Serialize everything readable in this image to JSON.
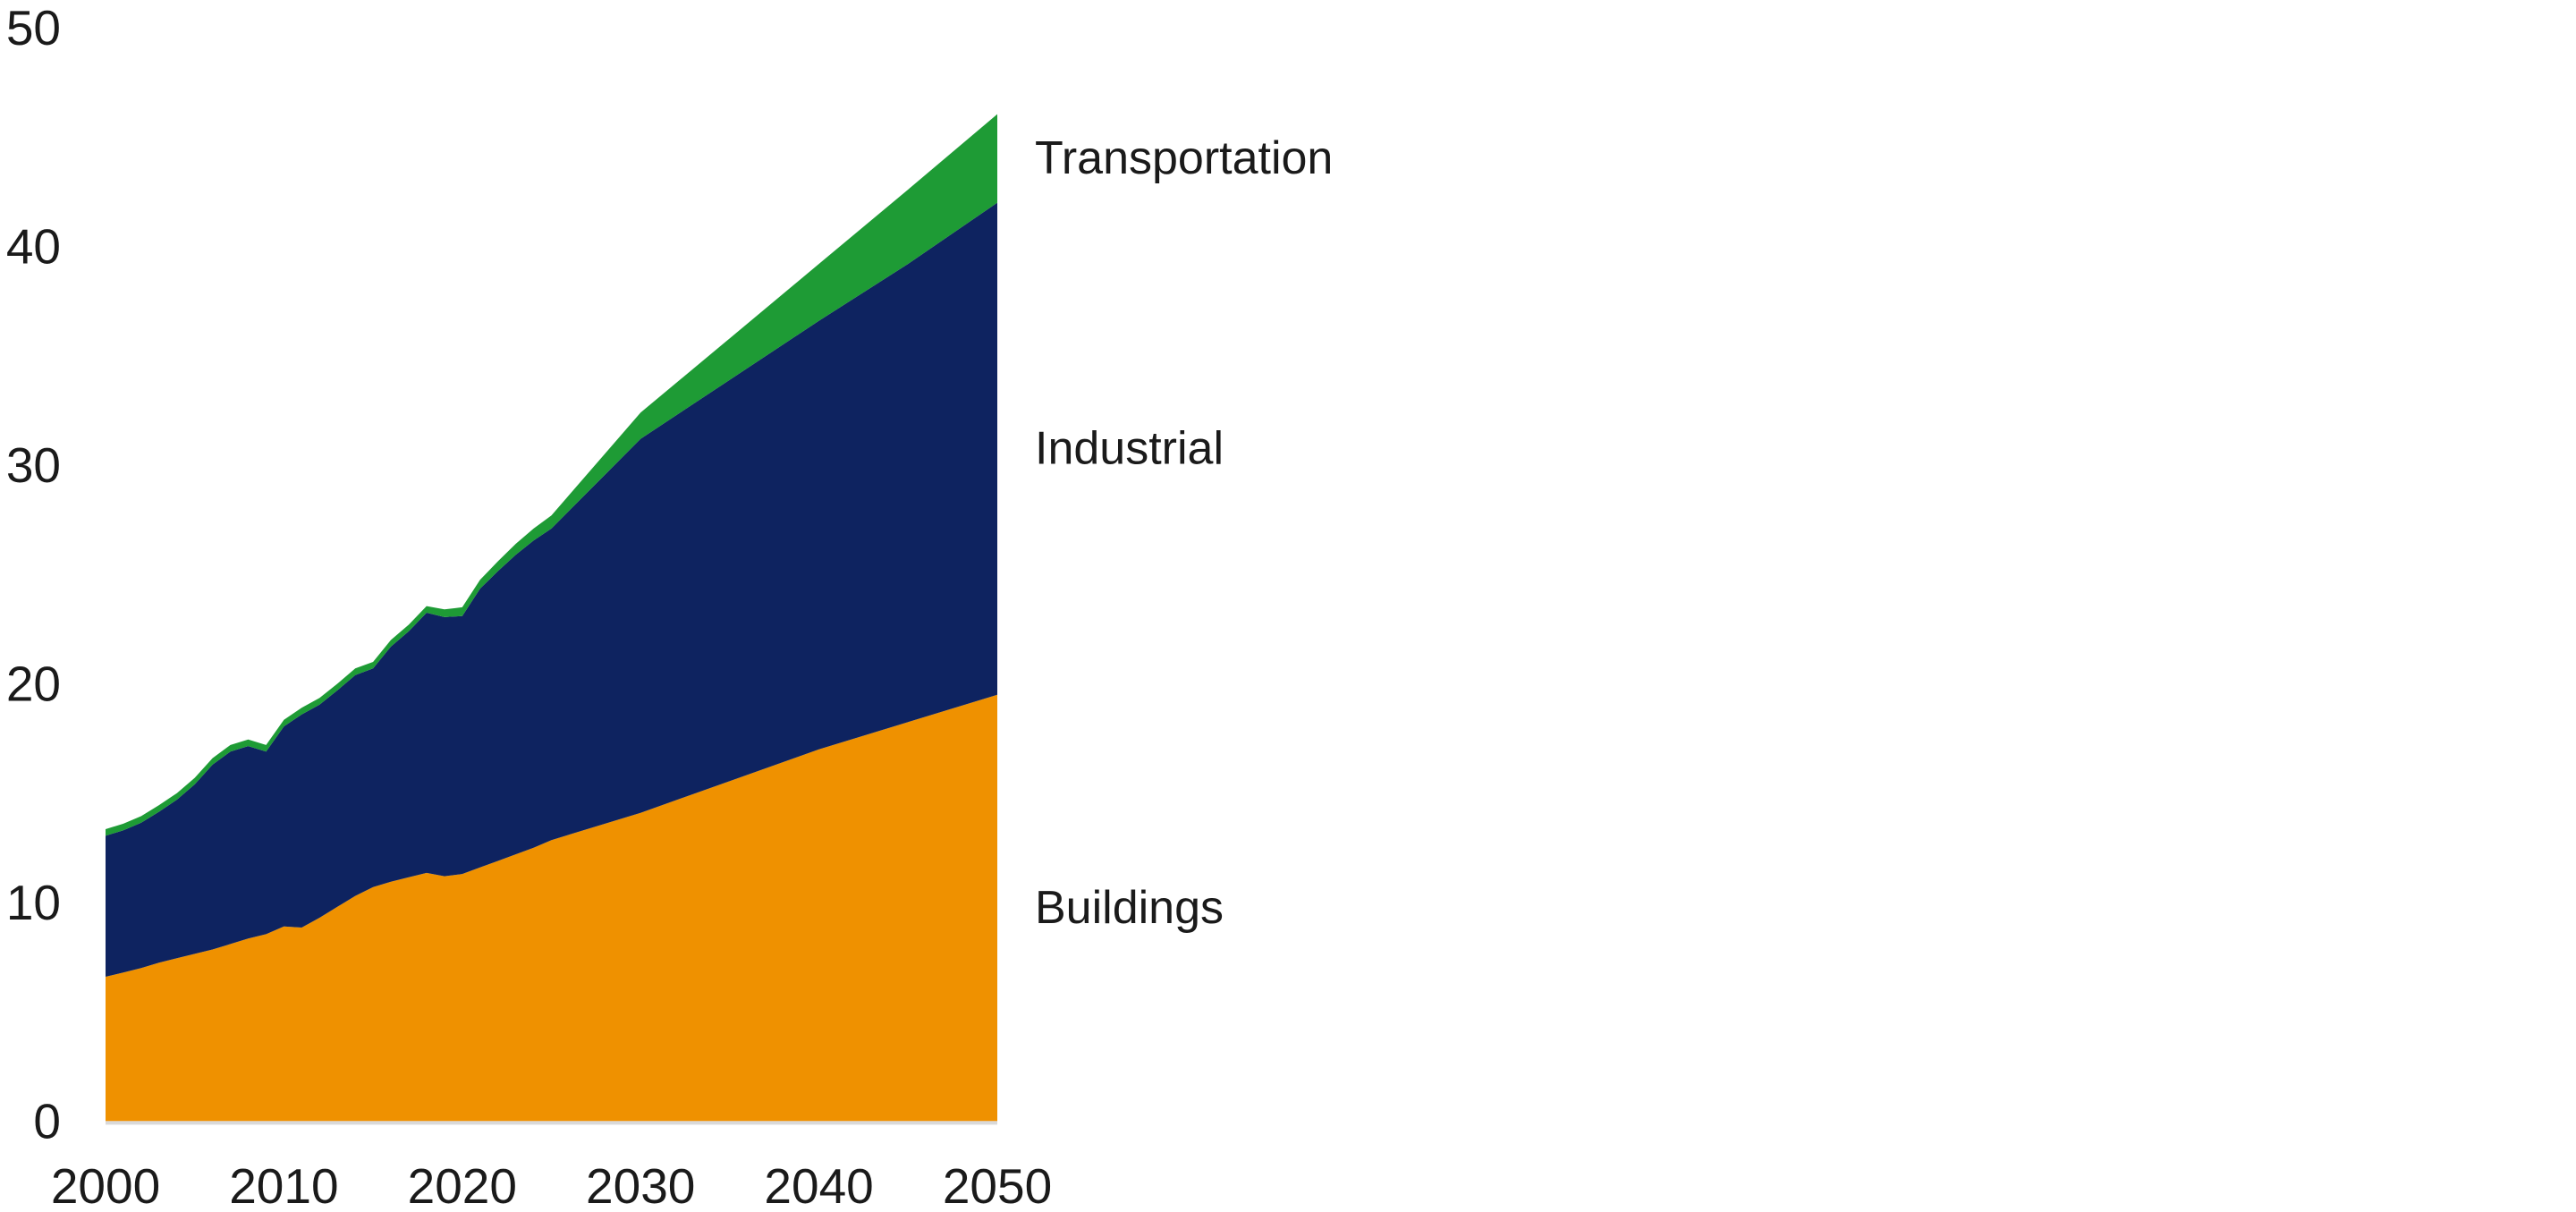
{
  "chart_data": {
    "type": "area",
    "stacked": true,
    "title": "",
    "xlabel": "",
    "ylabel": "",
    "xlim": [
      2000,
      2050
    ],
    "ylim": [
      0,
      50
    ],
    "grid": false,
    "legend_position": "right-inline-band-labels",
    "axis_line_color": "#d9d9d9",
    "text_color": "#1a1a1a",
    "background_color": "#ffffff",
    "x": [
      2000,
      2001,
      2002,
      2003,
      2004,
      2005,
      2006,
      2007,
      2008,
      2009,
      2010,
      2011,
      2012,
      2013,
      2014,
      2015,
      2016,
      2017,
      2018,
      2019,
      2020,
      2021,
      2022,
      2023,
      2024,
      2025,
      2030,
      2035,
      2040,
      2045,
      2050
    ],
    "series": [
      {
        "name": "Buildings",
        "color": "#ef9100",
        "values": [
          6.6,
          6.8,
          7.0,
          7.25,
          7.45,
          7.65,
          7.85,
          8.1,
          8.35,
          8.55,
          8.9,
          8.85,
          9.3,
          9.8,
          10.3,
          10.7,
          10.95,
          11.15,
          11.35,
          11.2,
          11.3,
          11.6,
          11.9,
          12.2,
          12.5,
          12.85,
          14.1,
          15.55,
          17.0,
          18.25,
          19.5
        ]
      },
      {
        "name": "Industrial",
        "color": "#0e2360",
        "values": [
          6.45,
          6.5,
          6.65,
          6.9,
          7.25,
          7.75,
          8.45,
          8.8,
          8.8,
          8.35,
          9.15,
          9.75,
          9.75,
          9.9,
          10.1,
          10.0,
          10.75,
          11.25,
          11.9,
          11.85,
          11.8,
          12.75,
          13.25,
          13.7,
          14.05,
          14.25,
          17.1,
          18.35,
          19.6,
          20.95,
          22.5
        ]
      },
      {
        "name": "Transportation",
        "color": "#1e9b35",
        "values": [
          0.3,
          0.3,
          0.3,
          0.3,
          0.3,
          0.3,
          0.3,
          0.3,
          0.3,
          0.3,
          0.3,
          0.3,
          0.3,
          0.3,
          0.3,
          0.3,
          0.3,
          0.3,
          0.3,
          0.35,
          0.4,
          0.4,
          0.45,
          0.5,
          0.55,
          0.6,
          1.2,
          1.9,
          2.6,
          3.4,
          4.05
        ]
      }
    ],
    "x_ticks": [
      "2000",
      "2010",
      "2020",
      "2030",
      "2040",
      "2050"
    ],
    "x_tick_years": [
      2000,
      2010,
      2020,
      2030,
      2040,
      2050
    ],
    "y_ticks": [
      "0",
      "10",
      "20",
      "30",
      "40",
      "50"
    ],
    "y_tick_values": [
      0,
      10,
      20,
      30,
      40,
      50
    ]
  }
}
